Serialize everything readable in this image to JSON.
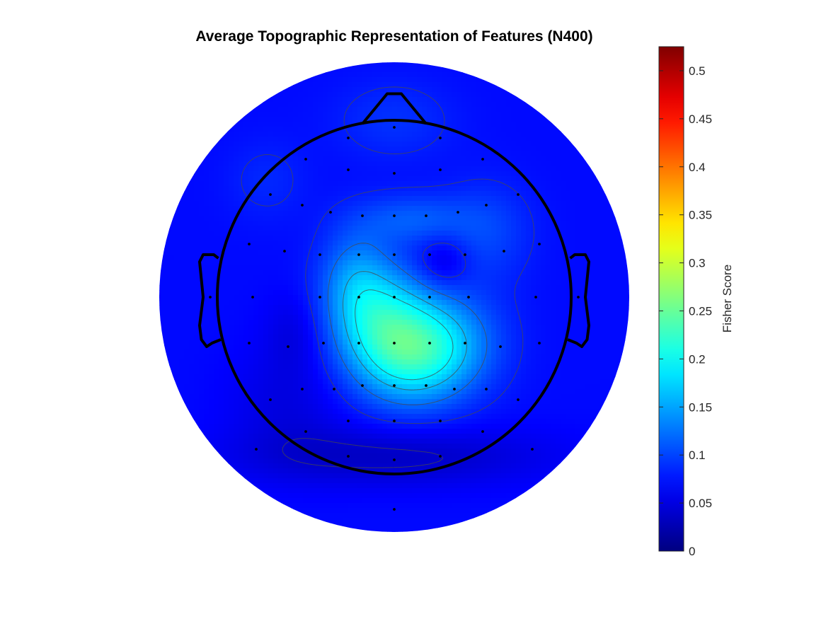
{
  "chart_data": {
    "type": "heatmap",
    "subtype": "scalp-topography",
    "title": "Average Topographic Representation of Features (N400)",
    "colorbar": {
      "label": "Fisher Score",
      "colormap": "jet",
      "clim": [
        0,
        0.525
      ],
      "ticks": [
        0,
        0.05,
        0.1,
        0.15,
        0.2,
        0.25,
        0.3,
        0.35,
        0.4,
        0.45,
        0.5
      ],
      "tick_labels": [
        "0",
        "0.05",
        "0.1",
        "0.15",
        "0.2",
        "0.25",
        "0.3",
        "0.35",
        "0.4",
        "0.45",
        "0.5"
      ]
    },
    "coordinate_note": "electrode x,y in head units: head circle radius 0.5, nose toward +y",
    "background_value": 0.07,
    "sources": [
      {
        "x": 0.05,
        "y": -0.16,
        "sx": 0.12,
        "sy": 0.1,
        "value": 0.14
      },
      {
        "x": -0.04,
        "y": -0.04,
        "sx": 0.1,
        "sy": 0.1,
        "value": 0.08
      },
      {
        "x": -0.11,
        "y": 0.06,
        "sx": 0.07,
        "sy": 0.1,
        "value": 0.05
      },
      {
        "x": 0.18,
        "y": -0.11,
        "sx": 0.1,
        "sy": 0.09,
        "value": 0.03
      },
      {
        "x": 0.05,
        "y": 0.22,
        "sx": 0.11,
        "sy": 0.05,
        "value": 0.04
      },
      {
        "x": 0.26,
        "y": 0.18,
        "sx": 0.09,
        "sy": 0.1,
        "value": 0.03
      },
      {
        "x": 0.14,
        "y": 0.1,
        "sx": 0.05,
        "sy": 0.05,
        "value": -0.03
      },
      {
        "x": 0.0,
        "y": -0.45,
        "sx": 0.3,
        "sy": 0.06,
        "value": -0.035
      },
      {
        "x": -0.3,
        "y": -0.3,
        "sx": 0.12,
        "sy": 0.12,
        "value": -0.02
      },
      {
        "x": -0.28,
        "y": -0.1,
        "sx": 0.06,
        "sy": 0.08,
        "value": -0.02
      },
      {
        "x": 0.0,
        "y": 0.5,
        "sx": 0.12,
        "sy": 0.08,
        "value": 0.02
      },
      {
        "x": -0.36,
        "y": 0.33,
        "sx": 0.08,
        "sy": 0.08,
        "value": 0.015
      }
    ],
    "contour_levels": [
      0.04,
      0.08,
      0.12,
      0.16,
      0.19
    ],
    "electrodes": [
      [
        0.0,
        0.48
      ],
      [
        -0.13,
        0.45
      ],
      [
        0.13,
        0.45
      ],
      [
        -0.25,
        0.39
      ],
      [
        0.25,
        0.39
      ],
      [
        -0.13,
        0.36
      ],
      [
        0.0,
        0.35
      ],
      [
        0.13,
        0.36
      ],
      [
        -0.35,
        0.29
      ],
      [
        -0.26,
        0.26
      ],
      [
        -0.18,
        0.24
      ],
      [
        -0.09,
        0.23
      ],
      [
        0.0,
        0.23
      ],
      [
        0.09,
        0.23
      ],
      [
        0.18,
        0.24
      ],
      [
        0.26,
        0.26
      ],
      [
        0.35,
        0.29
      ],
      [
        -0.41,
        0.15
      ],
      [
        -0.31,
        0.13
      ],
      [
        -0.21,
        0.12
      ],
      [
        -0.1,
        0.12
      ],
      [
        0.0,
        0.12
      ],
      [
        0.1,
        0.12
      ],
      [
        0.2,
        0.12
      ],
      [
        0.31,
        0.13
      ],
      [
        0.41,
        0.15
      ],
      [
        -0.52,
        0.0
      ],
      [
        -0.4,
        0.0
      ],
      [
        -0.21,
        0.0
      ],
      [
        -0.1,
        0.0
      ],
      [
        0.0,
        0.0
      ],
      [
        0.1,
        0.0
      ],
      [
        0.21,
        0.0
      ],
      [
        0.4,
        0.0
      ],
      [
        0.52,
        0.0
      ],
      [
        -0.41,
        -0.13
      ],
      [
        -0.3,
        -0.14
      ],
      [
        -0.2,
        -0.13
      ],
      [
        -0.1,
        -0.13
      ],
      [
        0.0,
        -0.13
      ],
      [
        0.1,
        -0.13
      ],
      [
        0.2,
        -0.13
      ],
      [
        0.3,
        -0.14
      ],
      [
        0.41,
        -0.13
      ],
      [
        -0.35,
        -0.29
      ],
      [
        -0.26,
        -0.26
      ],
      [
        -0.17,
        -0.26
      ],
      [
        -0.09,
        -0.25
      ],
      [
        0.0,
        -0.25
      ],
      [
        0.09,
        -0.25
      ],
      [
        0.17,
        -0.26
      ],
      [
        0.26,
        -0.26
      ],
      [
        0.35,
        -0.29
      ],
      [
        -0.25,
        -0.38
      ],
      [
        -0.13,
        -0.35
      ],
      [
        0.0,
        -0.35
      ],
      [
        0.13,
        -0.35
      ],
      [
        0.25,
        -0.38
      ],
      [
        -0.13,
        -0.45
      ],
      [
        0.0,
        -0.46
      ],
      [
        0.13,
        -0.45
      ],
      [
        0.0,
        -0.6
      ],
      [
        -0.39,
        -0.43
      ],
      [
        0.39,
        -0.43
      ]
    ]
  }
}
